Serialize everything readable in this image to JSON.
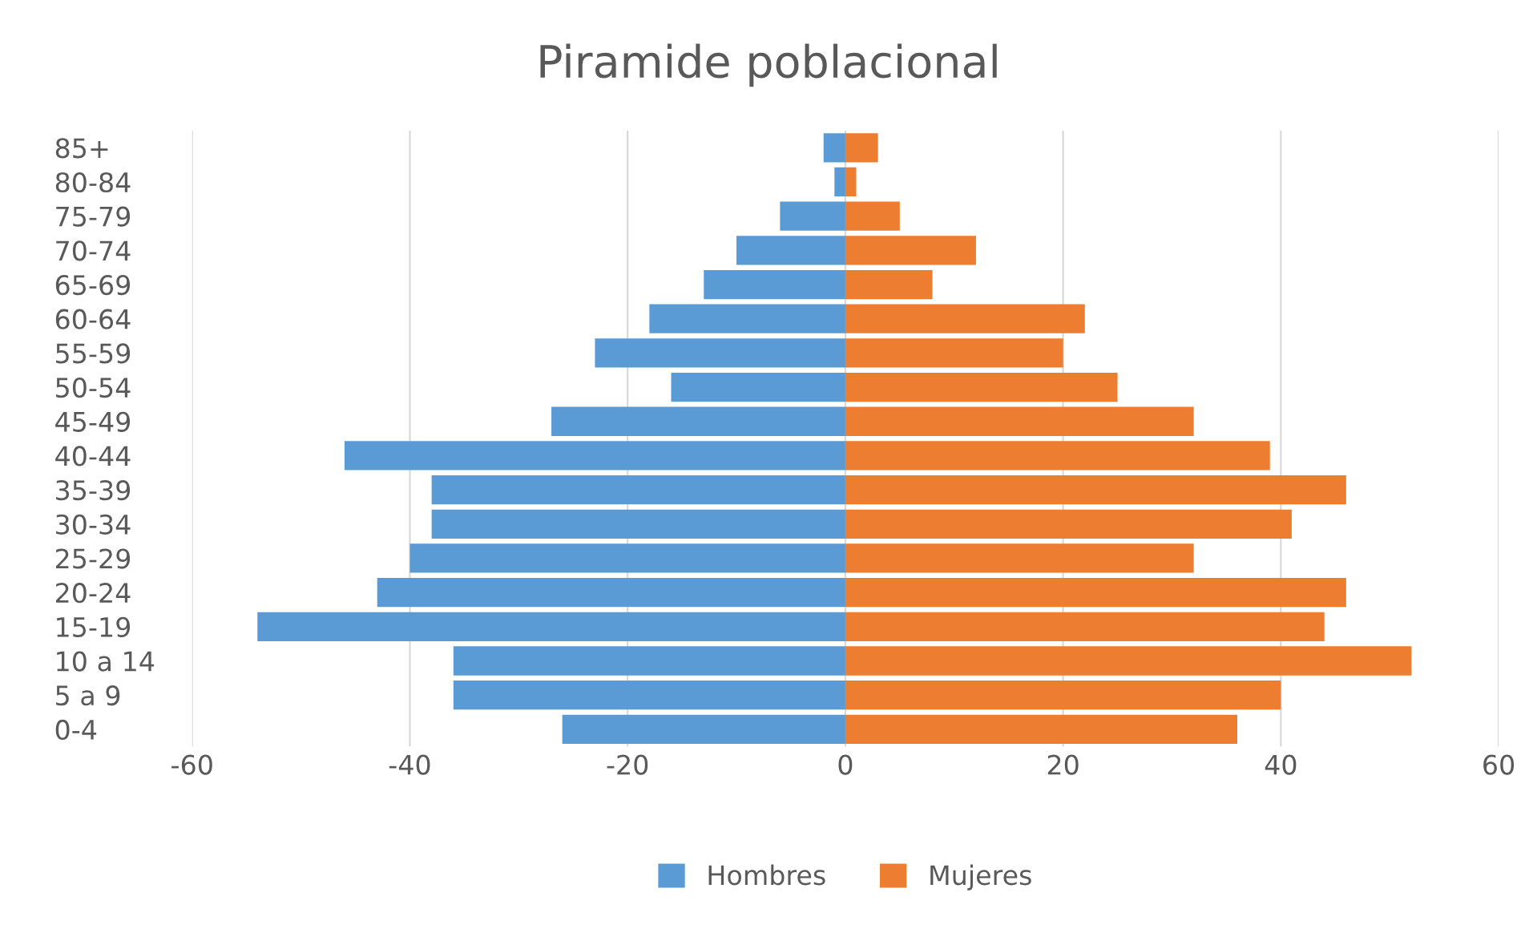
{
  "chart_data": {
    "type": "bar",
    "orientation": "horizontal",
    "stacked": true,
    "title": "Piramide poblacional",
    "categories": [
      "85+",
      "80-84",
      "75-79",
      "70-74",
      "65-69",
      "60-64",
      "55-59",
      "50-54",
      "45-49",
      "40-44",
      "35-39",
      "30-34",
      "25-29",
      "20-24",
      "15-19",
      "10 a 14",
      "5 a 9",
      "0-4"
    ],
    "series": [
      {
        "name": "Hombres",
        "color": "#5b9bd5",
        "values": [
          -2,
          -1,
          -6,
          -10,
          -13,
          -18,
          -23,
          -16,
          -27,
          -46,
          -38,
          -38,
          -40,
          -43,
          -54,
          -36,
          -36,
          -26
        ]
      },
      {
        "name": "Mujeres",
        "color": "#ed7d31",
        "values": [
          3,
          1,
          5,
          12,
          8,
          22,
          20,
          25,
          32,
          39,
          46,
          41,
          32,
          46,
          44,
          52,
          40,
          36
        ]
      }
    ],
    "xlim": [
      -60,
      60
    ],
    "xticks": [
      -60,
      -40,
      -20,
      0,
      20,
      40,
      60
    ],
    "grid": "x",
    "legend": "bottom"
  }
}
